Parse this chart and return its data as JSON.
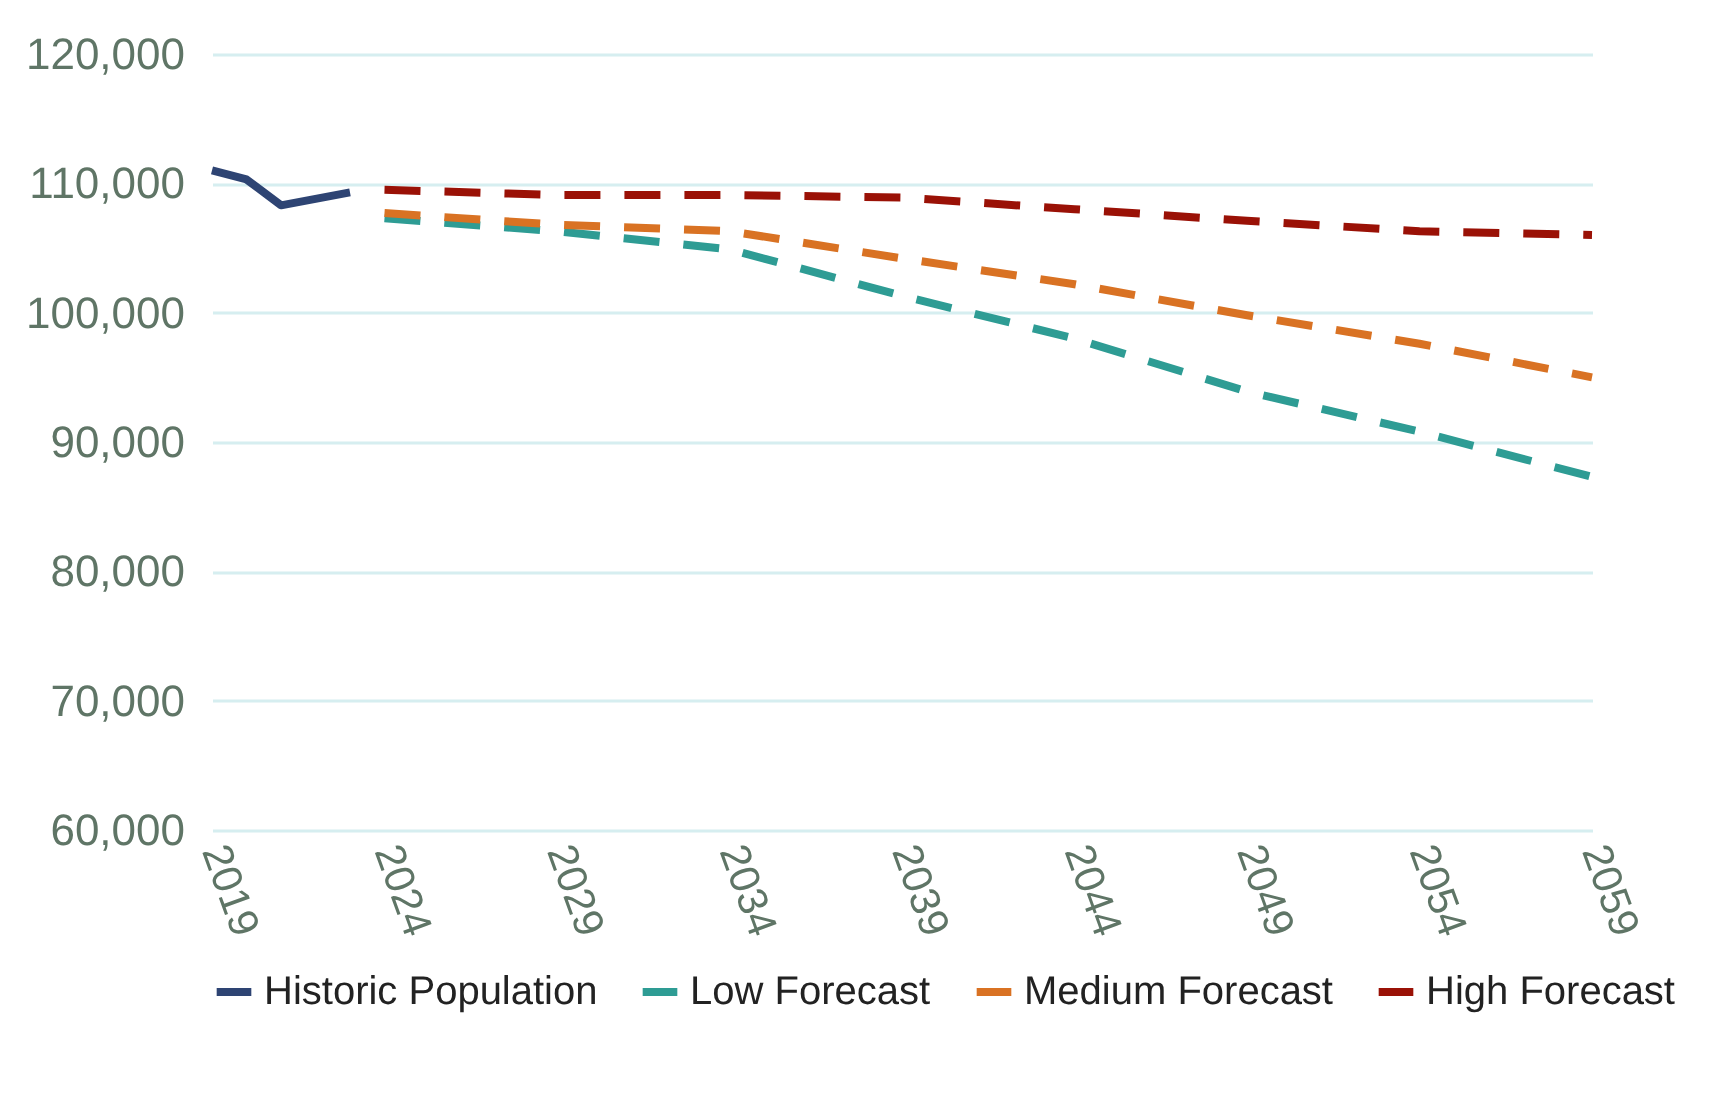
{
  "chart_data": {
    "type": "line",
    "xlim": [
      2019,
      2059
    ],
    "xticks": [
      2019,
      2024,
      2029,
      2034,
      2039,
      2044,
      2049,
      2054,
      2059
    ],
    "ylim": [
      60000,
      120000
    ],
    "yticks": [
      {
        "value": 60000,
        "label": "60,000"
      },
      {
        "value": 70000,
        "label": "70,000"
      },
      {
        "value": 80000,
        "label": "80,000"
      },
      {
        "value": 90000,
        "label": "90,000"
      },
      {
        "value": 100000,
        "label": "100,000"
      },
      {
        "value": 110000,
        "label": "110,000"
      },
      {
        "value": 120000,
        "label": "120,000"
      }
    ],
    "grid": "y",
    "legend": "bottom",
    "series": [
      {
        "name": "Historic Population",
        "color": "#2e4473",
        "line_style": "solid",
        "x": [
          2019,
          2020,
          2021,
          2022,
          2023
        ],
        "values": [
          111000,
          110300,
          108300,
          108800,
          109300
        ]
      },
      {
        "name": "Low Forecast",
        "color": "#2e9c94",
        "line_style": "dashed",
        "x": [
          2024,
          2029,
          2034,
          2039,
          2044,
          2049,
          2054,
          2059
        ],
        "values": [
          107300,
          106300,
          104900,
          101300,
          98000,
          93900,
          90800,
          87300
        ]
      },
      {
        "name": "Medium Forecast",
        "color": "#d97223",
        "line_style": "dashed",
        "x": [
          2024,
          2029,
          2034,
          2039,
          2044,
          2049,
          2054,
          2059
        ],
        "values": [
          107700,
          106800,
          106300,
          104200,
          102200,
          99800,
          97600,
          95000
        ]
      },
      {
        "name": "High Forecast",
        "color": "#9a1106",
        "line_style": "dashed",
        "x": [
          2024,
          2029,
          2034,
          2039,
          2044,
          2049,
          2054,
          2059
        ],
        "values": [
          109500,
          109100,
          109100,
          108900,
          108000,
          107100,
          106300,
          106000
        ]
      }
    ]
  }
}
